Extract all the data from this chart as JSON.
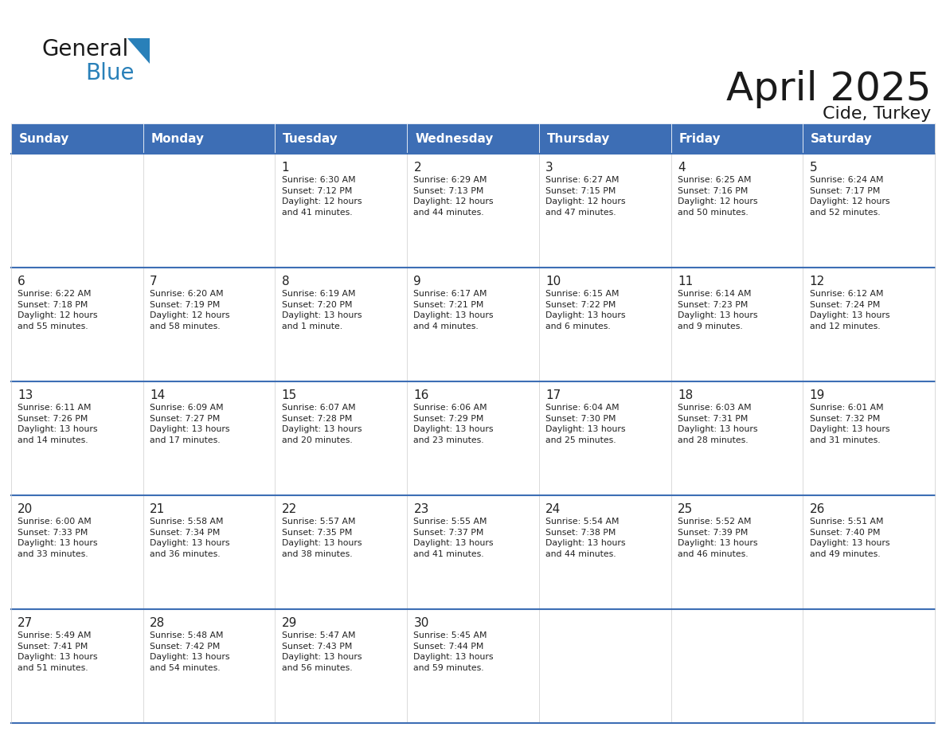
{
  "title": "April 2025",
  "subtitle": "Cide, Turkey",
  "header_bg": "#3D6EB5",
  "header_text_color": "#FFFFFF",
  "border_color": "#3D6EB5",
  "row_border_color": "#3D6EB5",
  "cell_border_color": "#cccccc",
  "title_color": "#1a1a1a",
  "text_color": "#222222",
  "day_num_color": "#222222",
  "days_of_week": [
    "Sunday",
    "Monday",
    "Tuesday",
    "Wednesday",
    "Thursday",
    "Friday",
    "Saturday"
  ],
  "weeks": [
    [
      {
        "day": "",
        "info": ""
      },
      {
        "day": "",
        "info": ""
      },
      {
        "day": "1",
        "info": "Sunrise: 6:30 AM\nSunset: 7:12 PM\nDaylight: 12 hours\nand 41 minutes."
      },
      {
        "day": "2",
        "info": "Sunrise: 6:29 AM\nSunset: 7:13 PM\nDaylight: 12 hours\nand 44 minutes."
      },
      {
        "day": "3",
        "info": "Sunrise: 6:27 AM\nSunset: 7:15 PM\nDaylight: 12 hours\nand 47 minutes."
      },
      {
        "day": "4",
        "info": "Sunrise: 6:25 AM\nSunset: 7:16 PM\nDaylight: 12 hours\nand 50 minutes."
      },
      {
        "day": "5",
        "info": "Sunrise: 6:24 AM\nSunset: 7:17 PM\nDaylight: 12 hours\nand 52 minutes."
      }
    ],
    [
      {
        "day": "6",
        "info": "Sunrise: 6:22 AM\nSunset: 7:18 PM\nDaylight: 12 hours\nand 55 minutes."
      },
      {
        "day": "7",
        "info": "Sunrise: 6:20 AM\nSunset: 7:19 PM\nDaylight: 12 hours\nand 58 minutes."
      },
      {
        "day": "8",
        "info": "Sunrise: 6:19 AM\nSunset: 7:20 PM\nDaylight: 13 hours\nand 1 minute."
      },
      {
        "day": "9",
        "info": "Sunrise: 6:17 AM\nSunset: 7:21 PM\nDaylight: 13 hours\nand 4 minutes."
      },
      {
        "day": "10",
        "info": "Sunrise: 6:15 AM\nSunset: 7:22 PM\nDaylight: 13 hours\nand 6 minutes."
      },
      {
        "day": "11",
        "info": "Sunrise: 6:14 AM\nSunset: 7:23 PM\nDaylight: 13 hours\nand 9 minutes."
      },
      {
        "day": "12",
        "info": "Sunrise: 6:12 AM\nSunset: 7:24 PM\nDaylight: 13 hours\nand 12 minutes."
      }
    ],
    [
      {
        "day": "13",
        "info": "Sunrise: 6:11 AM\nSunset: 7:26 PM\nDaylight: 13 hours\nand 14 minutes."
      },
      {
        "day": "14",
        "info": "Sunrise: 6:09 AM\nSunset: 7:27 PM\nDaylight: 13 hours\nand 17 minutes."
      },
      {
        "day": "15",
        "info": "Sunrise: 6:07 AM\nSunset: 7:28 PM\nDaylight: 13 hours\nand 20 minutes."
      },
      {
        "day": "16",
        "info": "Sunrise: 6:06 AM\nSunset: 7:29 PM\nDaylight: 13 hours\nand 23 minutes."
      },
      {
        "day": "17",
        "info": "Sunrise: 6:04 AM\nSunset: 7:30 PM\nDaylight: 13 hours\nand 25 minutes."
      },
      {
        "day": "18",
        "info": "Sunrise: 6:03 AM\nSunset: 7:31 PM\nDaylight: 13 hours\nand 28 minutes."
      },
      {
        "day": "19",
        "info": "Sunrise: 6:01 AM\nSunset: 7:32 PM\nDaylight: 13 hours\nand 31 minutes."
      }
    ],
    [
      {
        "day": "20",
        "info": "Sunrise: 6:00 AM\nSunset: 7:33 PM\nDaylight: 13 hours\nand 33 minutes."
      },
      {
        "day": "21",
        "info": "Sunrise: 5:58 AM\nSunset: 7:34 PM\nDaylight: 13 hours\nand 36 minutes."
      },
      {
        "day": "22",
        "info": "Sunrise: 5:57 AM\nSunset: 7:35 PM\nDaylight: 13 hours\nand 38 minutes."
      },
      {
        "day": "23",
        "info": "Sunrise: 5:55 AM\nSunset: 7:37 PM\nDaylight: 13 hours\nand 41 minutes."
      },
      {
        "day": "24",
        "info": "Sunrise: 5:54 AM\nSunset: 7:38 PM\nDaylight: 13 hours\nand 44 minutes."
      },
      {
        "day": "25",
        "info": "Sunrise: 5:52 AM\nSunset: 7:39 PM\nDaylight: 13 hours\nand 46 minutes."
      },
      {
        "day": "26",
        "info": "Sunrise: 5:51 AM\nSunset: 7:40 PM\nDaylight: 13 hours\nand 49 minutes."
      }
    ],
    [
      {
        "day": "27",
        "info": "Sunrise: 5:49 AM\nSunset: 7:41 PM\nDaylight: 13 hours\nand 51 minutes."
      },
      {
        "day": "28",
        "info": "Sunrise: 5:48 AM\nSunset: 7:42 PM\nDaylight: 13 hours\nand 54 minutes."
      },
      {
        "day": "29",
        "info": "Sunrise: 5:47 AM\nSunset: 7:43 PM\nDaylight: 13 hours\nand 56 minutes."
      },
      {
        "day": "30",
        "info": "Sunrise: 5:45 AM\nSunset: 7:44 PM\nDaylight: 13 hours\nand 59 minutes."
      },
      {
        "day": "",
        "info": ""
      },
      {
        "day": "",
        "info": ""
      },
      {
        "day": "",
        "info": ""
      }
    ]
  ],
  "logo_text1": "General",
  "logo_text2": "Blue",
  "logo_color1": "#1a1a1a",
  "logo_color2": "#2980b9",
  "logo_triangle_color": "#2980b9",
  "figsize": [
    11.88,
    9.18
  ],
  "dpi": 100
}
